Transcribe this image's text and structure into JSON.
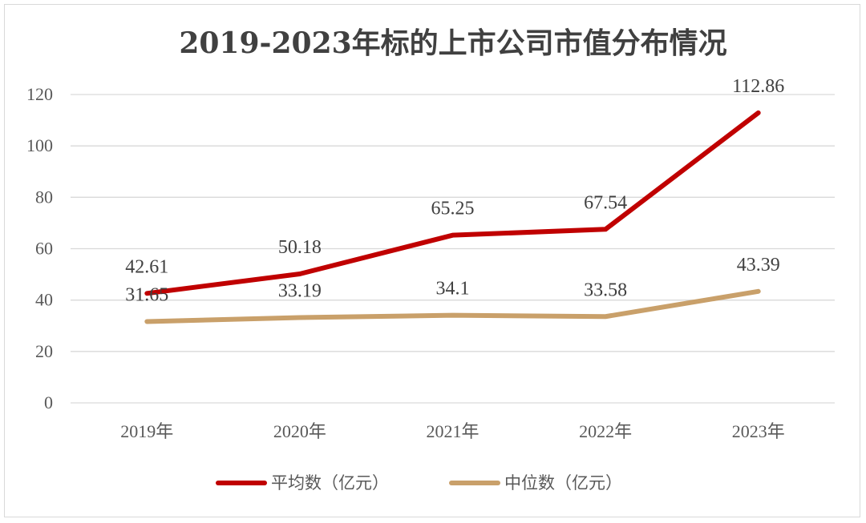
{
  "chart_data": {
    "type": "line",
    "title": "2019-2023年标的上市公司市值分布情况",
    "categories": [
      "2019年",
      "2020年",
      "2021年",
      "2022年",
      "2023年"
    ],
    "series": [
      {
        "name": "平均数（亿元）",
        "color": "#c00000",
        "values": [
          42.61,
          50.18,
          65.25,
          67.54,
          112.86
        ],
        "labels": [
          "42.61",
          "50.18",
          "65.25",
          "67.54",
          "112.86"
        ]
      },
      {
        "name": "中位数（亿元）",
        "color": "#c9a06a",
        "values": [
          31.65,
          33.19,
          34.1,
          33.58,
          43.39
        ],
        "labels": [
          "31.65",
          "33.19",
          "34.1",
          "33.58",
          "43.39"
        ]
      }
    ],
    "ylim": [
      0,
      120
    ],
    "yticks": [
      "0",
      "20",
      "40",
      "60",
      "80",
      "100",
      "120"
    ],
    "grid": true,
    "legend": "bottom"
  }
}
